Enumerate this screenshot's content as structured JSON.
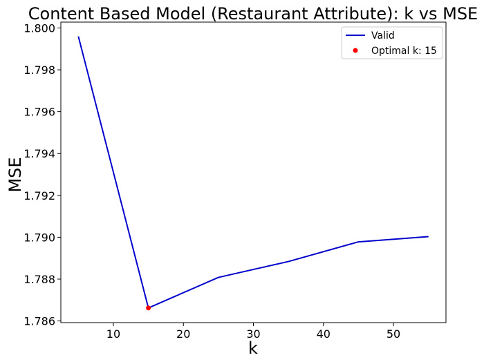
{
  "chart_data": {
    "type": "line",
    "title": "Content Based Model (Restaurant Attribute): k vs MSE",
    "xlabel": "k",
    "ylabel": "MSE",
    "xlim": [
      2.5,
      57.5
    ],
    "ylim": [
      1.78592,
      1.80028
    ],
    "x_ticks": [
      10,
      20,
      30,
      40,
      50
    ],
    "y_ticks": [
      1.786,
      1.788,
      1.79,
      1.792,
      1.794,
      1.796,
      1.798,
      1.8
    ],
    "x_tick_labels": [
      "10",
      "20",
      "30",
      "40",
      "50"
    ],
    "y_tick_labels": [
      "1.786",
      "1.788",
      "1.790",
      "1.792",
      "1.794",
      "1.796",
      "1.798",
      "1.800"
    ],
    "series": [
      {
        "name": "Valid",
        "color": "#0000cc",
        "x": [
          5,
          15,
          25,
          35,
          45,
          55
        ],
        "y": [
          1.7996,
          1.78662,
          1.78808,
          1.78884,
          1.78978,
          1.79003
        ]
      }
    ],
    "markers": [
      {
        "name": "Optimal k: 15",
        "color": "#ff0000",
        "x": 15,
        "y": 1.78662
      }
    ],
    "legend": {
      "position": "top-right",
      "entries": [
        "Valid",
        "Optimal k: 15"
      ]
    },
    "grid": false
  }
}
